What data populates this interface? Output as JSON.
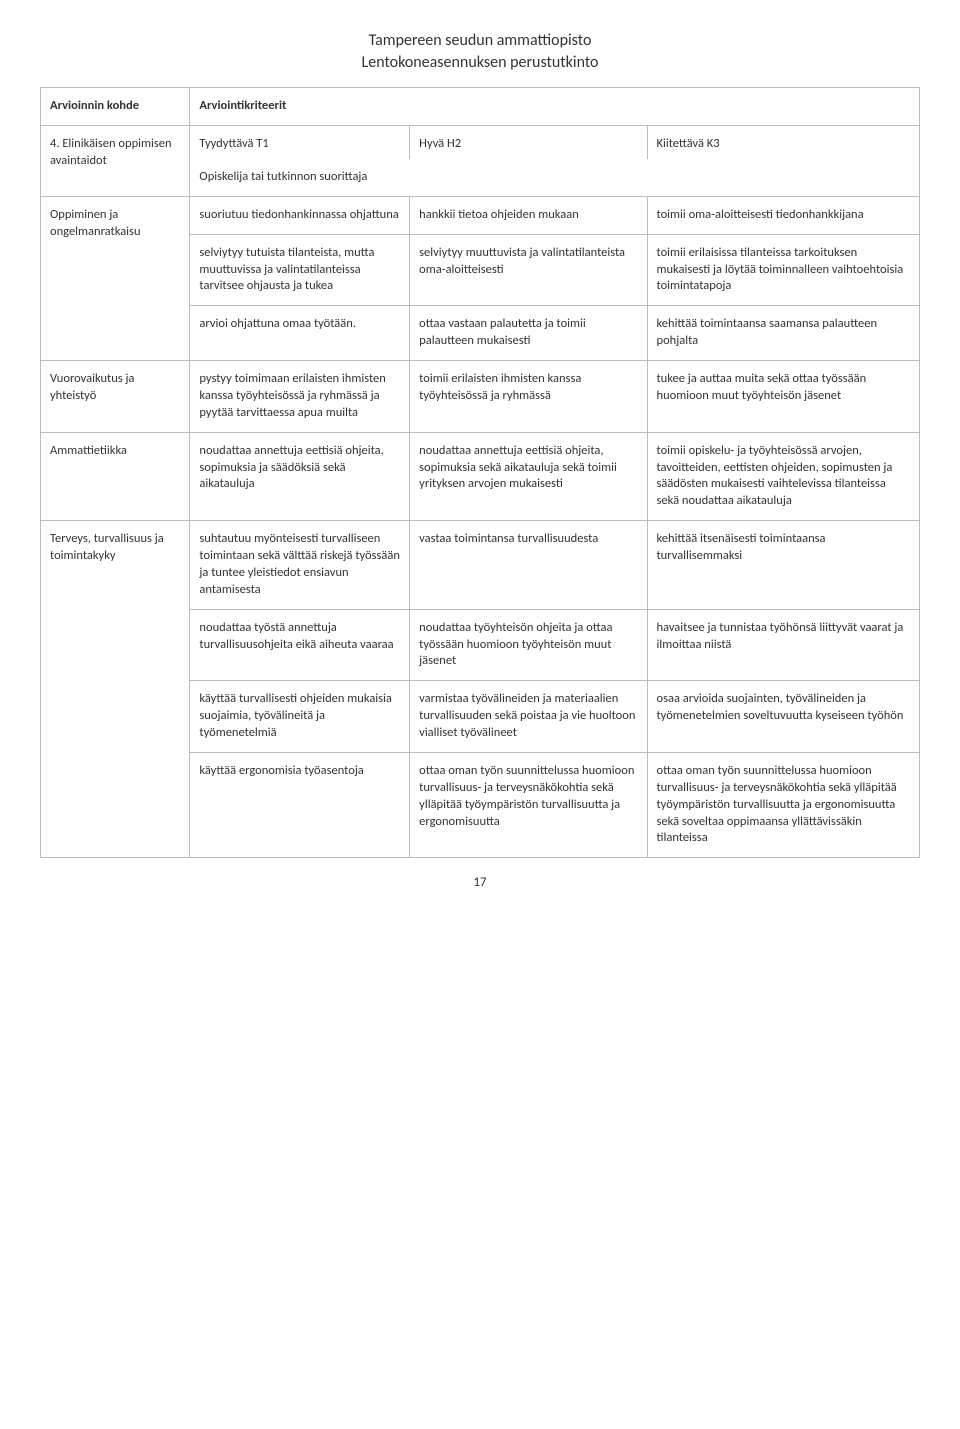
{
  "header": {
    "line1": "Tampereen seudun ammattiopisto",
    "line2": "Lentokoneasennuksen perustutkinto"
  },
  "table": {
    "headRow": {
      "col0": "Arvioinnin kohde",
      "col1": "Arviointikriteerit"
    },
    "section4": {
      "label": "4. Elinikäisen oppimisen avaintaidot",
      "grade_t1": "Tyydyttävä T1",
      "grade_h2": "Hyvä H2",
      "grade_k3": "Kiitettävä K3",
      "subline": "Opiskelija tai tutkinnon suorittaja"
    },
    "oppiminen": {
      "label": "Oppiminen ja ongelmanratkaisu",
      "r1": {
        "c1": "suoriutuu tiedonhankinnassa ohjattuna",
        "c2": "hankkii tietoa ohjeiden mukaan",
        "c3": "toimii oma-aloitteisesti tiedonhankkijana"
      },
      "r2": {
        "c1": "selviytyy tutuista tilanteista, mutta muuttuvissa ja valintatilanteissa tarvitsee ohjausta ja tukea",
        "c2": "selviytyy muuttuvista ja valintatilanteista oma-aloitteisesti",
        "c3": "toimii erilaisissa tilanteissa tarkoituksen mukaisesti ja löytää toiminnalleen vaihtoehtoisia toimintatapoja"
      },
      "r3": {
        "c1": "arvioi ohjattuna omaa työtään.",
        "c2": "ottaa vastaan palautetta ja toimii palautteen mukaisesti",
        "c3": "kehittää toimintaansa saamansa palautteen pohjalta"
      }
    },
    "vuorovaikutus": {
      "label": "Vuorovaikutus ja yhteistyö",
      "r1": {
        "c1": "pystyy toimimaan erilaisten ihmisten kanssa työyhteisössä ja ryhmässä ja pyytää tarvittaessa apua muilta",
        "c2": "toimii erilaisten ihmisten kanssa työyhteisössä ja ryhmässä",
        "c3": "tukee ja auttaa muita sekä ottaa työssään huomioon muut työyhteisön jäsenet"
      }
    },
    "ammattietiikka": {
      "label": "Ammattietiikka",
      "r1": {
        "c1": "noudattaa annettuja eettisiä ohjeita, sopimuksia ja säädöksiä sekä aikatauluja",
        "c2": "noudattaa annettuja eettisiä ohjeita, sopimuksia sekä aikatauluja sekä toimii yrityksen arvojen mukaisesti",
        "c3": "toimii opiskelu- ja työyhteisössä arvojen, tavoitteiden, eettisten ohjeiden, sopimusten ja säädösten mukaisesti vaihtelevissa tilanteissa sekä noudattaa aikatauluja"
      }
    },
    "terveys": {
      "label": "Terveys, turvallisuus ja toimintakyky",
      "r1": {
        "c1": "suhtautuu myönteisesti turvalliseen toimintaan sekä välttää riskejä työssään ja tuntee yleistiedot ensiavun antamisesta",
        "c2": "vastaa toimintansa turvallisuudesta",
        "c3": "kehittää itsenäisesti toimintaansa turvallisemmaksi"
      },
      "r2": {
        "c1": "noudattaa työstä annettuja turvallisuusohjeita eikä aiheuta vaaraa",
        "c2": "noudattaa työyhteisön ohjeita ja ottaa työssään huomioon työyhteisön muut jäsenet",
        "c3": "havaitsee ja tunnistaa työhönsä liittyvät vaarat ja ilmoittaa niistä"
      },
      "r3": {
        "c1": "käyttää turvallisesti ohjeiden mukaisia suojaimia, työvälineitä ja työmenetelmiä",
        "c2": "varmistaa työvälineiden ja materiaalien turvallisuuden sekä poistaa ja vie huoltoon vialliset työvälineet",
        "c3": "osaa arvioida suojainten, työvälineiden ja työmenetelmien soveltuvuutta kyseiseen työhön"
      },
      "r4": {
        "c1": "käyttää ergonomisia työasentoja",
        "c2": "ottaa oman työn suunnittelussa huomioon turvallisuus- ja terveysnäkökohtia sekä ylläpitää työympäristön turvallisuutta ja ergonomisuutta",
        "c3": "ottaa oman työn suunnittelussa huomioon turvallisuus- ja terveysnäkökohtia sekä ylläpitää työympäristön turvallisuutta ja ergonomisuutta sekä soveltaa oppimaansa yllättävissäkin tilanteissa"
      }
    }
  },
  "pageNumber": "17"
}
